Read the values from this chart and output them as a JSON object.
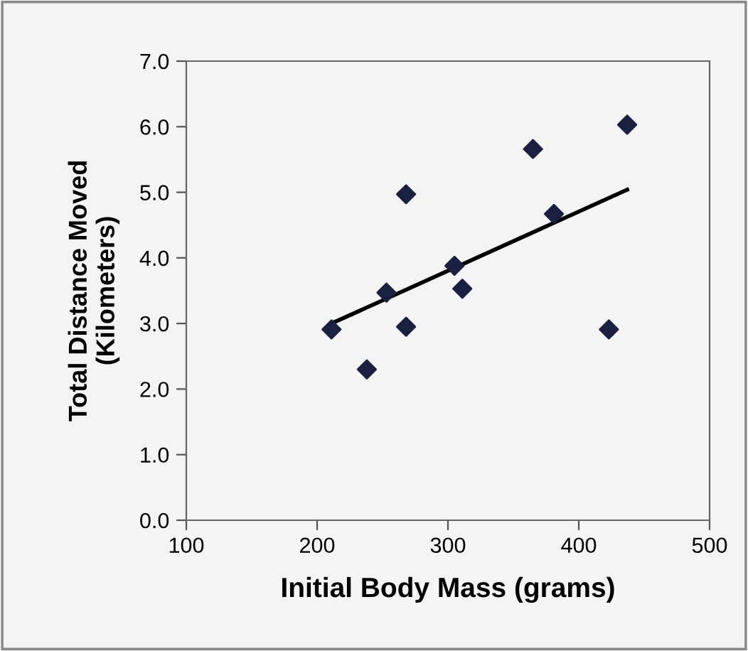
{
  "chart_data": {
    "type": "scatter",
    "xlabel": "Initial Body Mass (grams)",
    "ylabel": "Total Distance Moved\n(Kilometers)",
    "xlim": [
      100,
      500
    ],
    "xticks": [
      100,
      200,
      300,
      400,
      500
    ],
    "ylim": [
      0,
      7
    ],
    "yticks": [
      {
        "value": 0,
        "label": "0.0"
      },
      {
        "value": 1,
        "label": "1.0"
      },
      {
        "value": 2,
        "label": "2.0"
      },
      {
        "value": 3,
        "label": "3.0"
      },
      {
        "value": 4,
        "label": "4.0"
      },
      {
        "value": 5,
        "label": "5.0"
      },
      {
        "value": 6,
        "label": "6.0"
      },
      {
        "value": 7,
        "label": "7.0"
      }
    ],
    "grid": false,
    "legend": false,
    "series": [
      {
        "marker": "diamond",
        "color": "#1a2040",
        "x": [
          211,
          238,
          253,
          268,
          268,
          305,
          311,
          365,
          381,
          423,
          437
        ],
        "values": [
          2.91,
          2.3,
          3.47,
          4.97,
          2.95,
          3.88,
          3.53,
          5.66,
          4.67,
          2.91,
          6.03
        ]
      },
      {
        "type": "line",
        "marker": "none",
        "line_style": "solid",
        "color": "#000000",
        "x": [
          211,
          437
        ],
        "values": [
          3.0,
          5.04
        ]
      }
    ]
  }
}
